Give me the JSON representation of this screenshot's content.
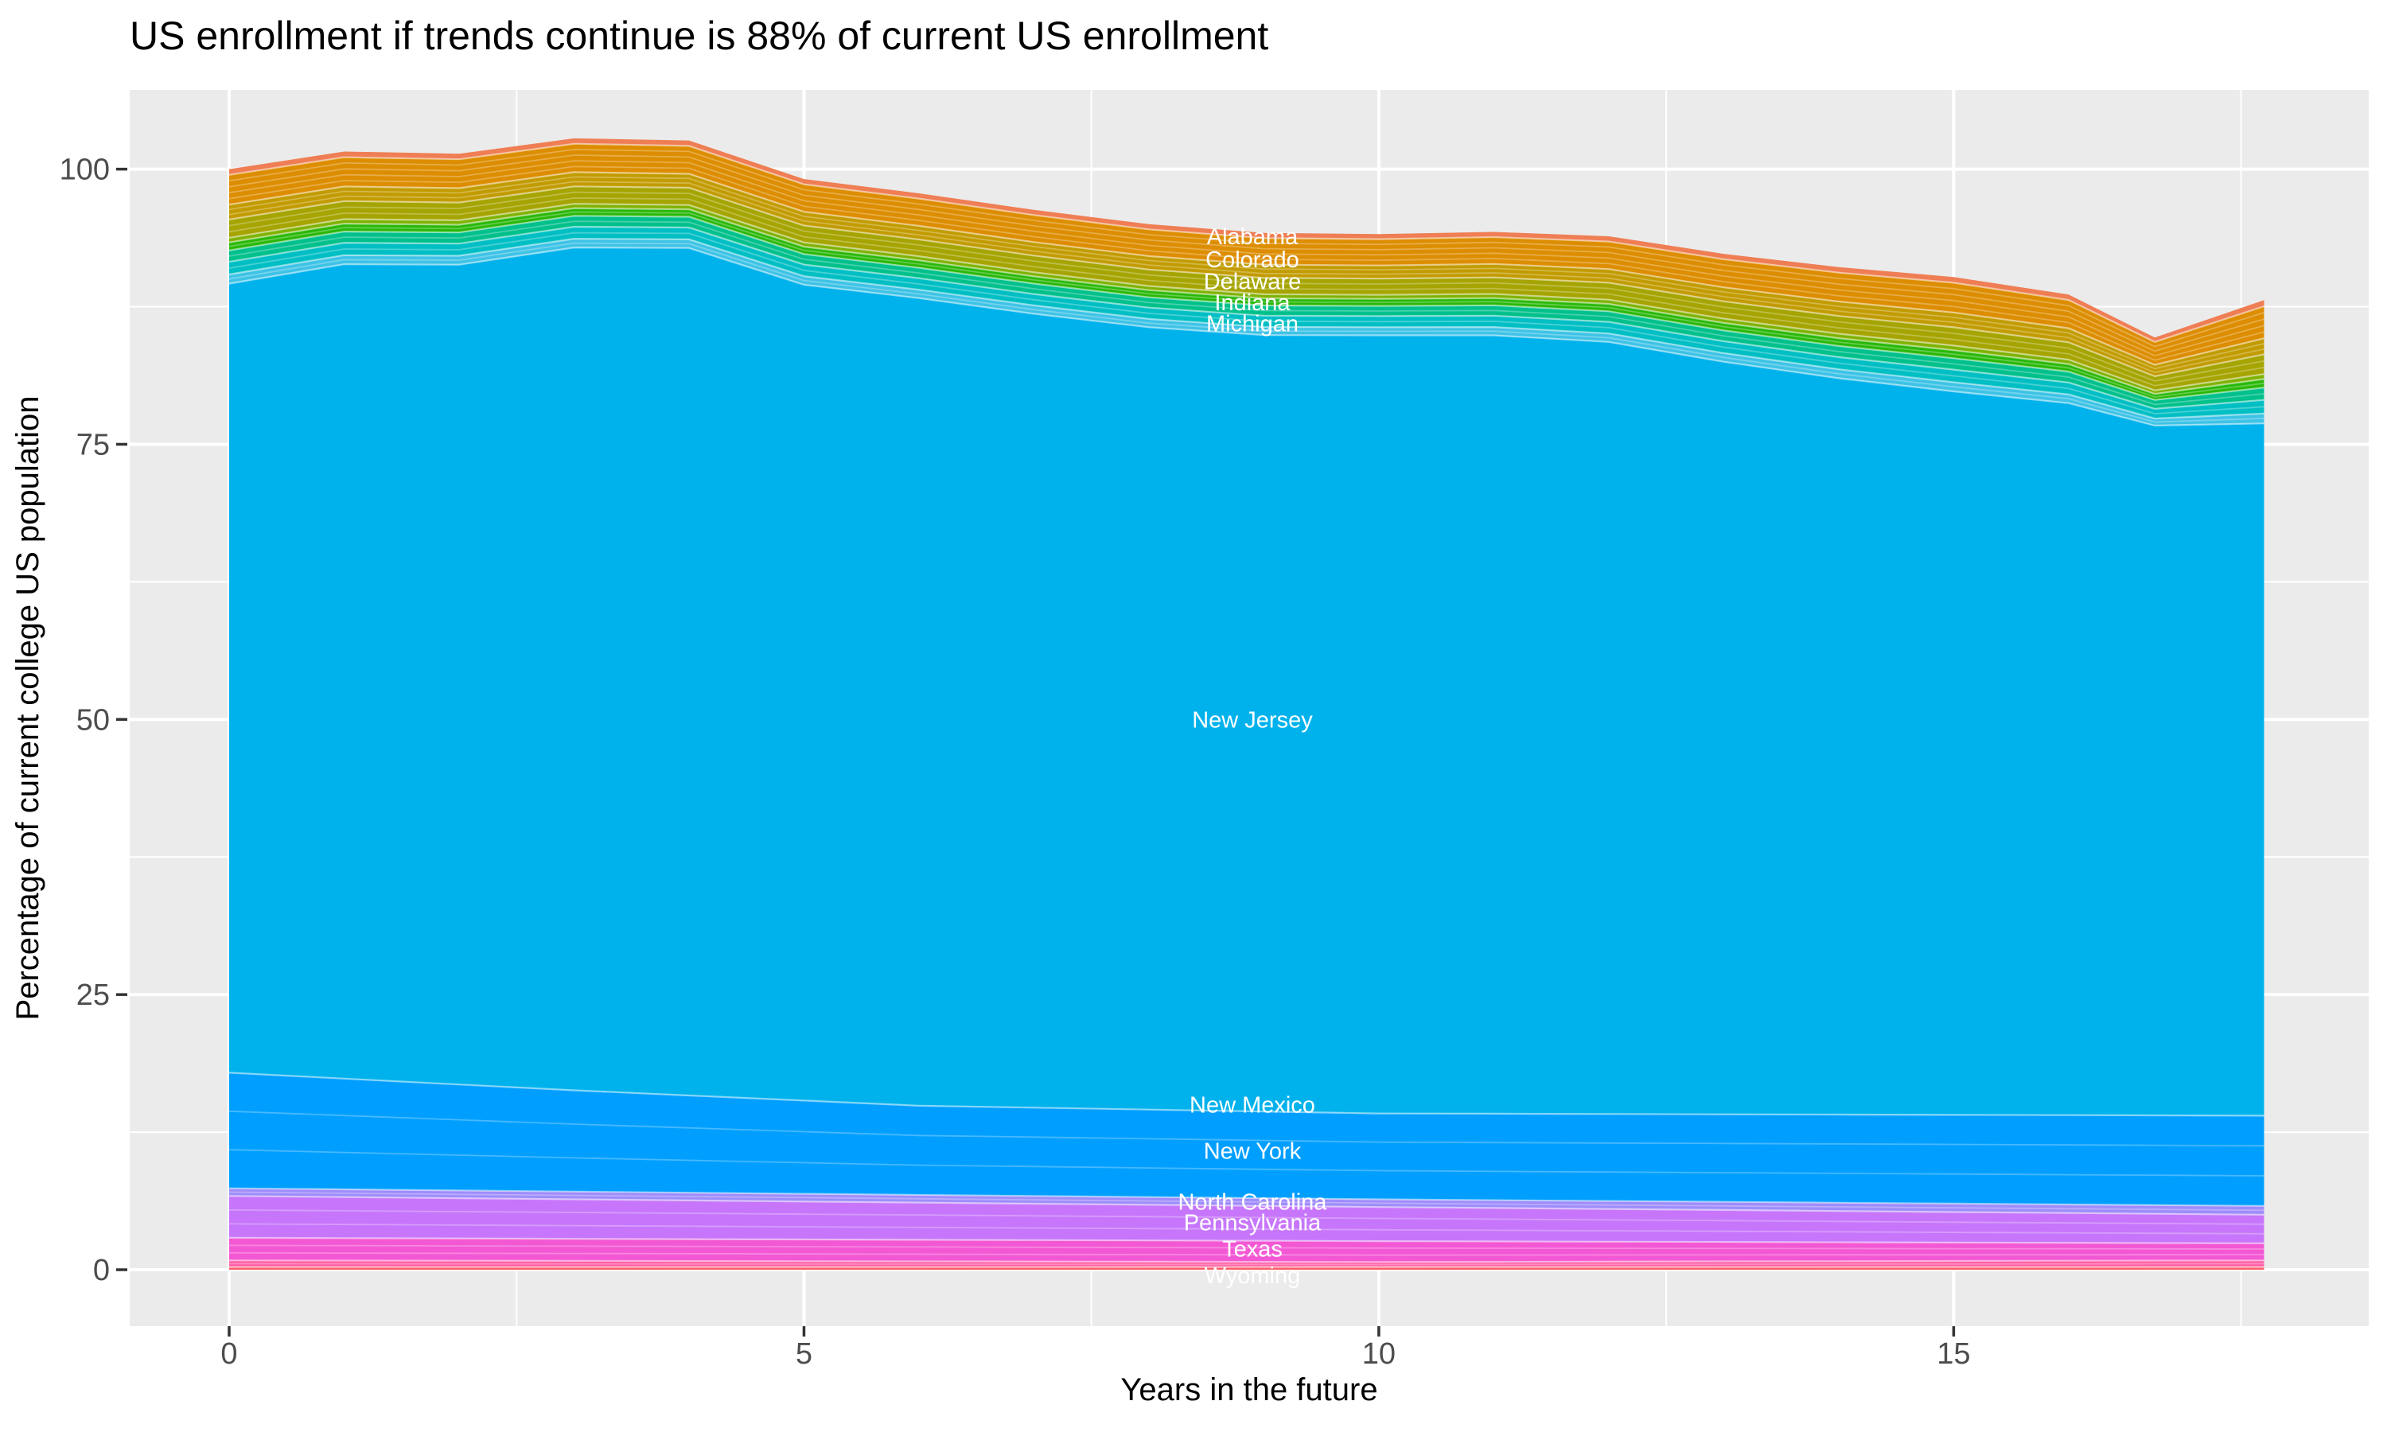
{
  "chart_data": {
    "type": "area",
    "title": "US enrollment if trends continue is 88% of current US enrollment",
    "xlabel": "Years in the future",
    "ylabel": "Percentage of current college US population",
    "final_value_pct": 88,
    "x_domain": [
      -0.865,
      18.61
    ],
    "y_domain": [
      -5.13,
      107.2
    ],
    "x_ticks": [
      0,
      5,
      10,
      15
    ],
    "x_minor_ticks": [
      2.5,
      7.5,
      12.5,
      17.5
    ],
    "y_ticks": [
      0,
      25,
      50,
      75,
      100
    ],
    "y_minor_ticks": [
      12.5,
      37.5,
      62.5,
      87.5
    ],
    "grid": true,
    "legend": "none",
    "total_pct_by_year": [
      [
        0,
        100.0
      ],
      [
        1,
        101.6
      ],
      [
        2,
        101.4
      ],
      [
        3,
        102.8
      ],
      [
        4,
        102.6
      ],
      [
        5,
        99.1
      ],
      [
        6,
        97.8
      ],
      [
        7,
        96.3
      ],
      [
        8,
        95.0
      ],
      [
        9,
        94.2
      ],
      [
        10,
        94.1
      ],
      [
        11,
        94.3
      ],
      [
        12,
        93.9
      ],
      [
        13,
        92.3
      ],
      [
        14,
        91.1
      ],
      [
        15,
        90.2
      ],
      [
        16,
        88.6
      ],
      [
        16.75,
        84.7
      ],
      [
        17.7,
        88.1
      ]
    ],
    "top_region_thickness": [
      [
        0,
        10.4
      ],
      [
        5,
        9.6
      ],
      [
        10,
        9.2
      ],
      [
        13,
        9.8
      ],
      [
        15.7,
        10.6
      ],
      [
        16.75,
        8.0
      ],
      [
        17.7,
        11.2
      ]
    ],
    "bottom_bands": [
      {
        "name": "band-red",
        "color": "#FB5D67",
        "sublines": 0,
        "top_anchors": [
          [
            0,
            0.25
          ],
          [
            17.7,
            0.25
          ]
        ]
      },
      {
        "name": "band-pink",
        "color": "#FF5DA3",
        "sublines": 1,
        "top_anchors": [
          [
            0,
            0.85
          ],
          [
            10,
            0.7
          ],
          [
            17.7,
            0.85
          ]
        ]
      },
      {
        "name": "band-magenta",
        "color": "#F358D4",
        "sublines": 2,
        "top_anchors": [
          [
            0,
            2.9
          ],
          [
            10,
            2.6
          ],
          [
            17.7,
            2.4
          ]
        ]
      },
      {
        "name": "band-violet",
        "color": "#C776FB",
        "sublines": 2,
        "top_anchors": [
          [
            0,
            6.7
          ],
          [
            10,
            5.7
          ],
          [
            17.7,
            5.0
          ]
        ]
      },
      {
        "name": "band-lavender",
        "color": "#9E8CFB",
        "sublines": 1,
        "top_anchors": [
          [
            0,
            7.4
          ],
          [
            10,
            6.4
          ],
          [
            17.7,
            5.8
          ]
        ]
      },
      {
        "name": "band-blue",
        "color": "#009FFF",
        "sublines": 2,
        "top_anchors": [
          [
            0,
            17.9
          ],
          [
            3,
            16.3
          ],
          [
            6,
            14.9
          ],
          [
            10,
            14.2
          ],
          [
            17.7,
            14.0
          ]
        ]
      }
    ],
    "main_band": {
      "name": "band-cyan",
      "color": "#00B2EC",
      "sublines": 0
    },
    "top_bands": [
      {
        "name": "band-lightcyan",
        "color": "#3EC3E6",
        "frac": 0.08,
        "sublines": 1
      },
      {
        "name": "band-teal",
        "color": "#00BFC4",
        "frac": 0.11,
        "sublines": 1
      },
      {
        "name": "band-emerald",
        "color": "#00C08B",
        "frac": 0.1,
        "sublines": 1
      },
      {
        "name": "band-green",
        "color": "#29B808",
        "frac": 0.07,
        "sublines": 1
      },
      {
        "name": "band-yellowgreen",
        "color": "#7FB200",
        "frac": 0.04,
        "sublines": 0
      },
      {
        "name": "band-olive",
        "color": "#A5A400",
        "frac": 0.16,
        "sublines": 2
      },
      {
        "name": "band-mustard",
        "color": "#C29B00",
        "frac": 0.13,
        "sublines": 2
      },
      {
        "name": "band-orange",
        "color": "#DD8D00",
        "frac": 0.26,
        "sublines": 4
      },
      {
        "name": "band-salmon",
        "color": "#EF7E54",
        "frac": 0.05,
        "sublines": 0
      }
    ],
    "state_labels": [
      {
        "label": "Alabama",
        "x": 8.9,
        "y": 93.9
      },
      {
        "label": "Colorado",
        "x": 8.9,
        "y": 91.8
      },
      {
        "label": "Delaware",
        "x": 8.9,
        "y": 89.8
      },
      {
        "label": "Indiana",
        "x": 8.9,
        "y": 87.9
      },
      {
        "label": "Michigan",
        "x": 8.9,
        "y": 86.0
      },
      {
        "label": "New Jersey",
        "x": 8.9,
        "y": 50.0
      },
      {
        "label": "New Mexico",
        "x": 8.9,
        "y": 15.0
      },
      {
        "label": "New York",
        "x": 8.9,
        "y": 10.8
      },
      {
        "label": "North Carolina",
        "x": 8.9,
        "y": 6.2
      },
      {
        "label": "Pennsylvania",
        "x": 8.9,
        "y": 4.3
      },
      {
        "label": "Texas",
        "x": 8.9,
        "y": 1.9
      },
      {
        "label": "Wyoming",
        "x": 8.9,
        "y": -0.5
      }
    ],
    "colors": {
      "panel_bg": "#EBEBEB",
      "grid": "#FFFFFF",
      "tick_mark": "#333333",
      "tick_label": "#4D4D4D",
      "title_text": "#000000",
      "state_label_text": "#FFFFFF",
      "background": "#FFFFFF"
    }
  }
}
